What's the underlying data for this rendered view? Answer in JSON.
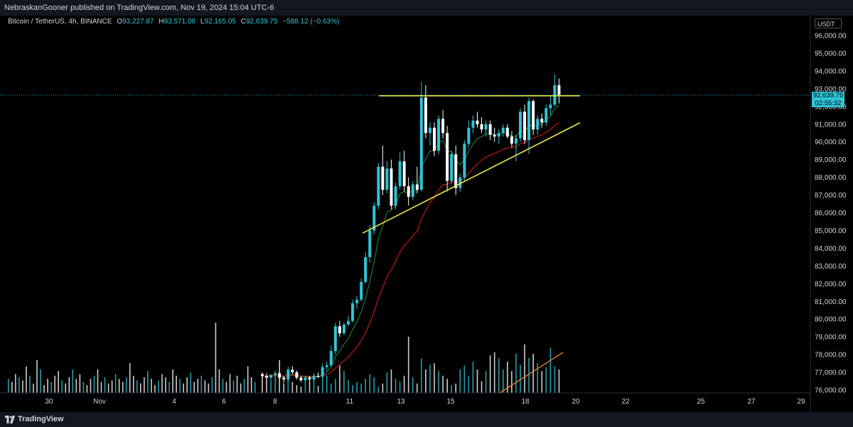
{
  "header": {
    "published_line": "NebraskanGooner published on TradingView.com, Nov 19, 2024 15:04 UTC-6"
  },
  "legend": {
    "symbol": "Bitcoin / TetherUS, 4h, BINANCE",
    "open_label": "O",
    "open": "93,227.87",
    "high_label": "H",
    "high": "93,571.08",
    "low_label": "L",
    "low": "92,165.05",
    "close_label": "C",
    "close": "92,639.75",
    "change": "−588.12 (−0.63%)"
  },
  "price_scale": {
    "currency": "USDT",
    "current_price": "92,639.75",
    "countdown": "02:55:32"
  },
  "footer": {
    "brand": "TradingView"
  },
  "colors": {
    "background": "#000000",
    "bull_candle": "#2ec4d6",
    "bear_candle": "#ffffff",
    "trendline": "#e8e34a",
    "ema_fast": "#1f7a2e",
    "ema_slow": "#c01818",
    "volume_trend": "#e57c2f",
    "price_line": "#2ec4d6"
  },
  "chart_data": {
    "type": "candlestick",
    "timeframe": "4h",
    "x_axis_labels": [
      "30",
      "Nov",
      "4",
      "6",
      "8",
      "11",
      "13",
      "15",
      "18",
      "20",
      "22",
      "25",
      "27",
      "29"
    ],
    "y_axis_labels": [
      "96,000.00",
      "95,000.00",
      "94,000.00",
      "93,000.00",
      "92,000.00",
      "91,000.00",
      "90,000.00",
      "89,000.00",
      "88,000.00",
      "87,000.00",
      "86,000.00",
      "85,000.00",
      "84,000.00",
      "83,000.00",
      "82,000.00",
      "81,000.00",
      "80,000.00",
      "79,000.00",
      "78,000.00",
      "77,000.00",
      "76,000.00"
    ],
    "ylim": [
      75600,
      96600
    ],
    "current_price": 92639.75,
    "candles": [
      [
        76900,
        77000,
        76700,
        76800
      ],
      [
        76800,
        76950,
        76600,
        76700
      ],
      [
        76700,
        76900,
        76500,
        76850
      ],
      [
        76850,
        77100,
        76700,
        76950
      ],
      [
        76950,
        77000,
        76600,
        76700
      ],
      [
        76700,
        76800,
        76400,
        76600
      ],
      [
        76600,
        77300,
        76500,
        77150
      ],
      [
        77150,
        77350,
        76900,
        77000
      ],
      [
        77000,
        77100,
        76600,
        76700
      ],
      [
        76700,
        76800,
        76450,
        76550
      ],
      [
        76550,
        76800,
        76500,
        76700
      ],
      [
        76700,
        76800,
        76500,
        76600
      ],
      [
        76600,
        76900,
        76500,
        76800
      ],
      [
        76800,
        77000,
        76700,
        76750
      ],
      [
        76750,
        77500,
        76700,
        77300
      ],
      [
        77300,
        77600,
        77100,
        77400
      ],
      [
        77400,
        78500,
        77300,
        78200
      ],
      [
        78200,
        79800,
        78000,
        79600
      ],
      [
        79600,
        79900,
        79000,
        79200
      ],
      [
        79200,
        79800,
        79100,
        79700
      ],
      [
        79700,
        80200,
        79600,
        79900
      ],
      [
        79900,
        81100,
        79800,
        80900
      ],
      [
        80900,
        81300,
        80600,
        81100
      ],
      [
        81100,
        82300,
        81000,
        82100
      ],
      [
        82100,
        83800,
        82000,
        83500
      ],
      [
        83500,
        85300,
        83200,
        85000
      ],
      [
        85000,
        86600,
        84800,
        86400
      ],
      [
        86400,
        88800,
        86200,
        88600
      ],
      [
        88600,
        89800,
        87000,
        87300
      ],
      [
        87300,
        88900,
        87100,
        88500
      ],
      [
        88500,
        89000,
        86200,
        86400
      ],
      [
        86400,
        87700,
        86200,
        87500
      ],
      [
        87500,
        89400,
        87300,
        88900
      ],
      [
        88900,
        89500,
        87200,
        87500
      ],
      [
        87500,
        88000,
        86400,
        86900
      ],
      [
        86900,
        87800,
        86700,
        87600
      ],
      [
        87600,
        88600,
        87100,
        87300
      ],
      [
        87300,
        93400,
        87200,
        92500
      ],
      [
        92500,
        93200,
        90200,
        90500
      ],
      [
        90500,
        91100,
        89800,
        90800
      ],
      [
        90800,
        91100,
        89200,
        89500
      ],
      [
        89500,
        91500,
        89300,
        91300
      ],
      [
        91300,
        91800,
        90200,
        90500
      ],
      [
        90500,
        90900,
        87200,
        87800
      ],
      [
        87800,
        89500,
        87600,
        89300
      ],
      [
        89300,
        89800,
        87000,
        87400
      ],
      [
        87400,
        88200,
        87200,
        88000
      ],
      [
        88000,
        90100,
        87800,
        89900
      ],
      [
        89900,
        91200,
        89700,
        90800
      ],
      [
        90800,
        91500,
        90500,
        91200
      ],
      [
        91200,
        91700,
        90800,
        91000
      ],
      [
        91000,
        91400,
        90500,
        90700
      ],
      [
        90700,
        91200,
        90300,
        91000
      ],
      [
        91000,
        91200,
        90100,
        90400
      ],
      [
        90400,
        90800,
        90000,
        90300
      ],
      [
        90300,
        90700,
        89900,
        90500
      ],
      [
        90500,
        91000,
        90300,
        90800
      ],
      [
        90800,
        91000,
        90200,
        90300
      ],
      [
        90300,
        90600,
        89700,
        89900
      ],
      [
        89900,
        90400,
        88900,
        90200
      ],
      [
        90200,
        91900,
        90000,
        91700
      ],
      [
        91700,
        92100,
        89900,
        90100
      ],
      [
        90100,
        92500,
        89300,
        92300
      ],
      [
        92300,
        92400,
        90400,
        90700
      ],
      [
        90700,
        91500,
        90400,
        91300
      ],
      [
        91300,
        91600,
        90800,
        91100
      ],
      [
        91100,
        92100,
        90900,
        91900
      ],
      [
        91900,
        92600,
        91500,
        92100
      ],
      [
        92100,
        93800,
        92000,
        93200
      ],
      [
        93200,
        93571,
        92165,
        92640
      ]
    ],
    "volume_rel": [
      0.22,
      0.18,
      0.15,
      0.2,
      0.42,
      0.12,
      0.3,
      0.14,
      0.1,
      0.08,
      0.18,
      0.15,
      0.25,
      0.09,
      0.3,
      0.22,
      0.12,
      0.18,
      0.35,
      0.28,
      0.16,
      0.1,
      0.14,
      0.12,
      0.18,
      0.24,
      0.2,
      0.08,
      0.12,
      0.26,
      0.3,
      0.18,
      0.14,
      0.22,
      0.72,
      0.2,
      0.12,
      0.44,
      0.3,
      0.36,
      0.38,
      0.28,
      0.22,
      0.18,
      0.1,
      0.12,
      0.3,
      0.35,
      0.22,
      0.4,
      0.3,
      0.15,
      0.28,
      0.48,
      0.52,
      0.44,
      0.3,
      0.4,
      0.28,
      0.5,
      0.36,
      0.62,
      0.45,
      0.5,
      0.38,
      0.28,
      0.33,
      0.58,
      0.34,
      0.3
    ]
  }
}
